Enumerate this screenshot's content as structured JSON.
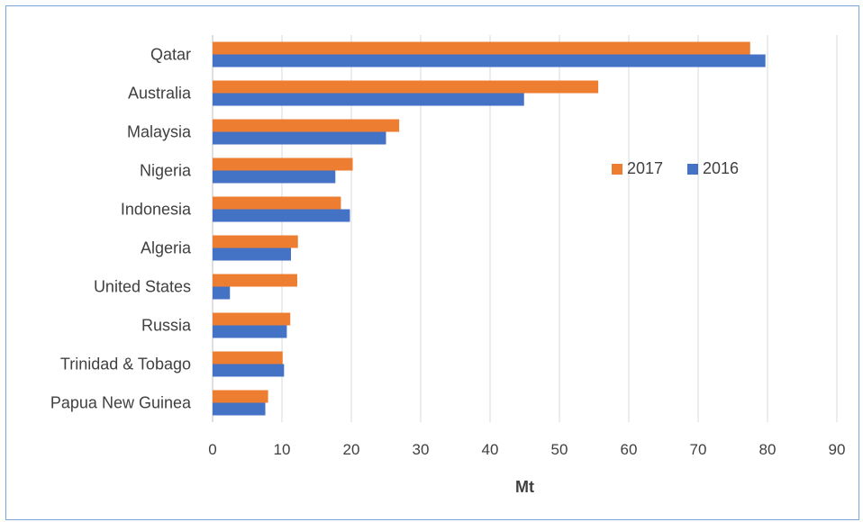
{
  "colors": {
    "series_2017": "#ed7d31",
    "series_2016": "#4472c4",
    "gridline": "#d9d9d9",
    "text": "#404040",
    "frame": "#7aa7d8"
  },
  "chart_data": {
    "type": "bar",
    "orientation": "horizontal",
    "title": "",
    "xlabel": "Mt",
    "ylabel": "",
    "xlim": [
      0,
      90
    ],
    "xticks": [
      0,
      10,
      20,
      30,
      40,
      50,
      60,
      70,
      80,
      90
    ],
    "grid": "vertical",
    "legend_position": "right",
    "categories": [
      "Qatar",
      "Australia",
      "Malaysia",
      "Nigeria",
      "Indonesia",
      "Algeria",
      "United States",
      "Russia",
      "Trinidad & Tobago",
      "Papua New Guinea"
    ],
    "series": [
      {
        "name": "2017",
        "color": "#ed7d31",
        "values": [
          77.5,
          55.6,
          26.9,
          20.2,
          18.5,
          12.3,
          12.2,
          11.2,
          10.1,
          8.0
        ]
      },
      {
        "name": "2016",
        "color": "#4472c4",
        "values": [
          79.7,
          44.9,
          25.0,
          17.7,
          19.8,
          11.3,
          2.5,
          10.7,
          10.3,
          7.6
        ]
      }
    ]
  }
}
